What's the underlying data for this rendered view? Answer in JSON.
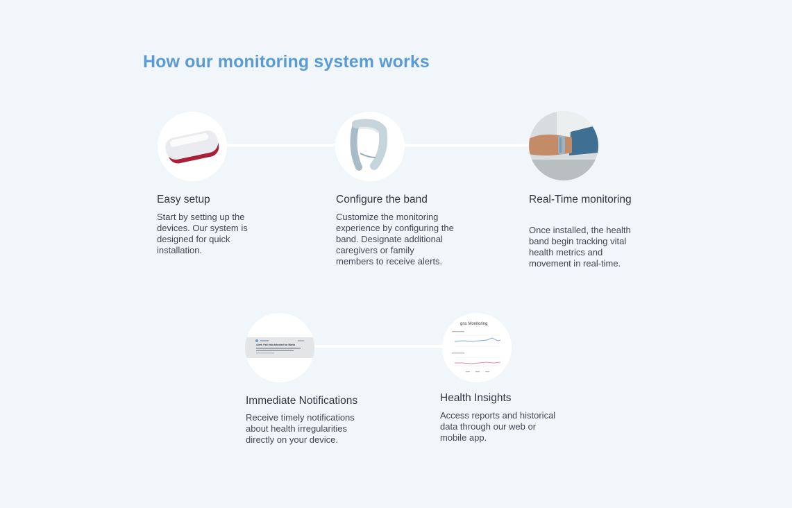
{
  "page": {
    "title": "How our monitoring system works"
  },
  "steps": [
    {
      "title": "Easy setup",
      "description": "Start by setting up the devices. Our system is designed for quick installation.",
      "icon": "router-device-image"
    },
    {
      "title": "Configure the band",
      "description": "Customize the monitoring experience by configuring the band. Designate additional caregivers or family members to receive alerts.",
      "icon": "wristband-image"
    },
    {
      "title": "Real-Time monitoring",
      "description": "Once installed, the health band begin tracking vital health metrics and movement  in real-time.",
      "icon": "wrist-wearing-band-photo"
    },
    {
      "title": "Immediate Notifications",
      "description": "Receive timely notifications about health irregularities directly on your device.",
      "icon": "notification-card-image",
      "notification": {
        "headline": "Alert: Fall risk detected for Maria"
      }
    },
    {
      "title": "Health Insights",
      "description": "Access reports and historical data through our web or mobile app.",
      "icon": "dashboard-chart-image",
      "dashboard": {
        "title": "gns Monitoring"
      }
    }
  ],
  "colors": {
    "background": "#f1f6fb",
    "accent": "#5b9bd5",
    "text": "#333c47",
    "chart_blue": "#7fa9d8",
    "chart_red": "#e38a9b",
    "device_red": "#b3243a"
  }
}
